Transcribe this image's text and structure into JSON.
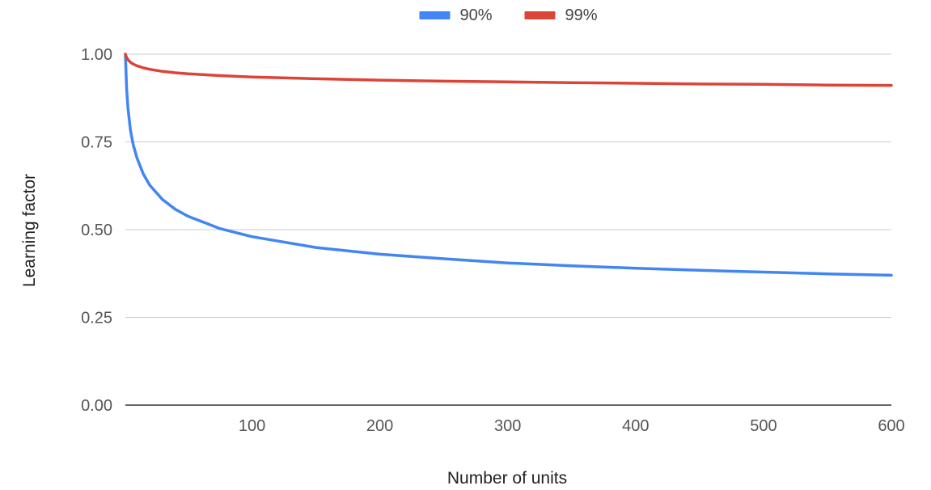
{
  "chart_data": {
    "type": "line",
    "title": "",
    "xlabel": "Number of units",
    "ylabel": "Learning factor",
    "xlim": [
      1,
      600
    ],
    "ylim": [
      0,
      1
    ],
    "x_ticks": [
      "100",
      "200",
      "300",
      "400",
      "500",
      "600"
    ],
    "y_ticks": [
      "0.00",
      "0.25",
      "0.50",
      "0.75",
      "1.00"
    ],
    "grid": true,
    "legend_position": "top",
    "x": [
      1,
      2,
      3,
      5,
      7,
      10,
      15,
      20,
      30,
      40,
      50,
      75,
      100,
      150,
      200,
      250,
      300,
      350,
      400,
      450,
      500,
      550,
      600
    ],
    "series": [
      {
        "name": "90%",
        "color": "#4285f4",
        "values": [
          1.0,
          0.9,
          0.846,
          0.783,
          0.744,
          0.705,
          0.659,
          0.627,
          0.586,
          0.558,
          0.538,
          0.503,
          0.48,
          0.449,
          0.43,
          0.417,
          0.405,
          0.397,
          0.39,
          0.384,
          0.379,
          0.374,
          0.37
        ]
      },
      {
        "name": "99%",
        "color": "#db4437",
        "values": [
          1.0,
          0.99,
          0.984,
          0.977,
          0.972,
          0.967,
          0.961,
          0.957,
          0.951,
          0.947,
          0.944,
          0.939,
          0.935,
          0.93,
          0.926,
          0.923,
          0.921,
          0.919,
          0.917,
          0.915,
          0.914,
          0.912,
          0.911
        ]
      }
    ]
  }
}
